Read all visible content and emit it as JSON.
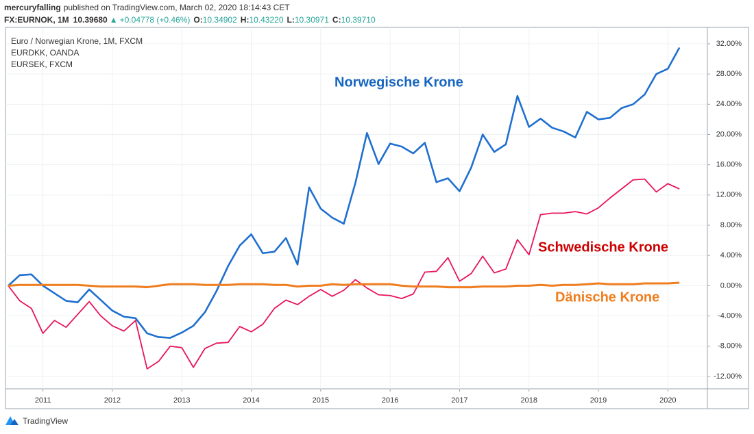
{
  "chart_data": {
    "type": "line",
    "publisher": "mercuryfalling",
    "published": "published on TradingView.com, March 02, 2020 18:14:43 CET",
    "quote": {
      "symbol": "FX:EURNOK, 1M",
      "last": "10.39680",
      "arrow": "▲",
      "change": "+0.04778 (+0.46%)",
      "ohlc": [
        {
          "label": "O:",
          "value": "10.34902"
        },
        {
          "label": "H:",
          "value": "10.43220"
        },
        {
          "label": "L:",
          "value": "10.30971"
        },
        {
          "label": "C:",
          "value": "10.39710"
        }
      ]
    },
    "categories": [
      null,
      null,
      null,
      "2011",
      null,
      null,
      null,
      null,
      null,
      "2012",
      null,
      null,
      null,
      null,
      null,
      "2013",
      null,
      null,
      null,
      null,
      null,
      "2014",
      null,
      null,
      null,
      null,
      null,
      "2015",
      null,
      null,
      null,
      null,
      null,
      "2016",
      null,
      null,
      null,
      null,
      null,
      "2017",
      null,
      null,
      null,
      null,
      null,
      "2018",
      null,
      null,
      null,
      null,
      null,
      "2019",
      null,
      null,
      null,
      null,
      null,
      "2020",
      null
    ],
    "series": [
      {
        "name": "Euro / Norwegian Krone, 1M, FXCM",
        "color": "#1f6fcf",
        "values": [
          0,
          1.4,
          1.5,
          0,
          -1.0,
          -2.0,
          -2.2,
          -0.5,
          -1.9,
          -3.3,
          -4.1,
          -4.3,
          -6.3,
          -6.8,
          -6.9,
          -6.2,
          -5.3,
          -3.5,
          -0.7,
          2.6,
          5.3,
          6.8,
          4.3,
          4.5,
          6.3,
          2.8,
          13.0,
          10.2,
          9.0,
          8.2,
          13.6,
          20.2,
          16.1,
          18.8,
          18.4,
          17.5,
          18.9,
          13.7,
          14.2,
          12.5,
          15.6,
          20.0,
          17.7,
          18.7,
          25.1,
          21.0,
          22.1,
          20.9,
          20.4,
          19.6,
          23.0,
          22.0,
          22.2,
          23.5,
          24.0,
          25.3,
          28.0,
          28.7,
          31.5
        ]
      },
      {
        "name": "EURDKK, OANDA",
        "color": "#f07d1e",
        "values": [
          0,
          0.1,
          0.1,
          0.1,
          0.1,
          0.1,
          0.1,
          0.0,
          -0.1,
          -0.1,
          -0.1,
          -0.1,
          -0.2,
          0.0,
          0.2,
          0.2,
          0.2,
          0.1,
          0.1,
          0.1,
          0.2,
          0.2,
          0.2,
          0.1,
          0.1,
          -0.1,
          0.0,
          0.0,
          0.2,
          0.1,
          0.2,
          0.2,
          0.2,
          0.2,
          0.0,
          -0.1,
          -0.1,
          -0.1,
          -0.2,
          -0.2,
          -0.2,
          -0.1,
          -0.1,
          -0.1,
          0.0,
          0.0,
          0.1,
          0.0,
          0.1,
          0.1,
          0.2,
          0.3,
          0.2,
          0.2,
          0.2,
          0.3,
          0.3,
          0.3,
          0.4
        ]
      },
      {
        "name": "EURSEK, FXCM",
        "color": "#e8145a",
        "values": [
          0,
          -2.0,
          -3.0,
          -6.3,
          -4.6,
          -5.5,
          -3.8,
          -2.1,
          -4.0,
          -5.3,
          -6.0,
          -4.6,
          -11.0,
          -10.0,
          -8.0,
          -8.2,
          -10.8,
          -8.3,
          -7.6,
          -7.5,
          -5.4,
          -6.1,
          -5.1,
          -3.0,
          -1.9,
          -2.5,
          -1.4,
          -0.5,
          -1.4,
          -0.6,
          0.8,
          -0.3,
          -1.2,
          -1.3,
          -1.7,
          -1.1,
          1.8,
          1.9,
          3.7,
          0.6,
          1.6,
          3.9,
          1.7,
          2.2,
          6.1,
          4.1,
          9.4,
          9.6,
          9.6,
          9.8,
          9.5,
          10.3,
          11.6,
          12.8,
          14.0,
          14.1,
          12.4,
          13.5,
          12.8
        ]
      }
    ],
    "annotations": [
      {
        "text": "Norwegische Krone",
        "color": "#1565c0"
      },
      {
        "text": "Schwedische Krone",
        "color": "#cc0000"
      },
      {
        "text": "Dänische Krone",
        "color": "#f07d1e"
      }
    ],
    "ylim": [
      -13.64,
      34.17
    ],
    "yticks": [
      {
        "value": 32,
        "label": "32.00%"
      },
      {
        "value": 28,
        "label": "28.00%"
      },
      {
        "value": 24,
        "label": "24.00%"
      },
      {
        "value": 20,
        "label": "20.00%"
      },
      {
        "value": 16,
        "label": "16.00%"
      },
      {
        "value": 12,
        "label": "12.00%"
      },
      {
        "value": 8,
        "label": "8.00%"
      },
      {
        "value": 4,
        "label": "4.00%"
      },
      {
        "value": 0,
        "label": "0.00%"
      },
      {
        "value": -4,
        "label": "-4.00%"
      },
      {
        "value": -8,
        "label": "-8.00%"
      },
      {
        "value": -12,
        "label": "-12.00%"
      }
    ],
    "grid": true,
    "footer": "TradingView"
  }
}
